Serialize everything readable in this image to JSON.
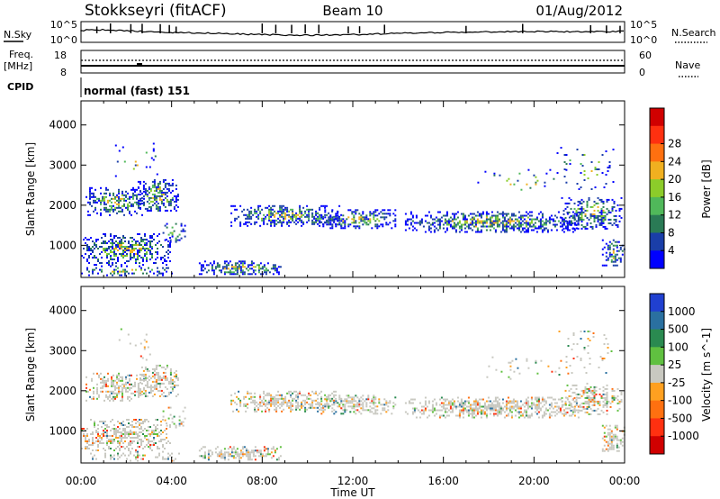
{
  "header": {
    "station": "Stokkseyri (fitACF)",
    "beam": "Beam 10",
    "date": "01/Aug/2012"
  },
  "top_panels": {
    "nsky_label": "N.Sky",
    "nsky_ticks": [
      "10^5",
      "10^0"
    ],
    "nsearch_label": "N.Search",
    "nsearch_ticks": [
      "10^5",
      "10^0"
    ],
    "freq_label_1": "Freq.",
    "freq_label_2": "[MHz]",
    "freq_ticks": [
      "18",
      "8"
    ],
    "nave_label": "Nave",
    "nave_ticks": [
      "60",
      "0"
    ],
    "cpid_label": "CPID",
    "cpid_value": "normal (fast) 151"
  },
  "chart_data": [
    {
      "type": "heatmap",
      "name": "power",
      "ylabel": "Slant Range [km]",
      "xlabel": "Time UT",
      "xlim": [
        "00:00",
        "24:00"
      ],
      "ylim": [
        200,
        4600
      ],
      "yticks": [
        "1000",
        "2000",
        "3000",
        "4000"
      ],
      "xticks": [
        "00:00",
        "04:00",
        "08:00",
        "12:00",
        "16:00",
        "20:00",
        "00:00"
      ],
      "colorbar_label": "Power [dB]",
      "colorbar_ticks": [
        "4",
        "8",
        "12",
        "16",
        "20",
        "24",
        "28"
      ],
      "colors": [
        "#0000ff",
        "#1a3ea8",
        "#2a7a55",
        "#50b85a",
        "#8ccc2a",
        "#f0b020",
        "#ff7010",
        "#ff3010",
        "#d00000"
      ]
    },
    {
      "type": "heatmap",
      "name": "velocity",
      "ylabel": "Slant Range [km]",
      "xlabel": "Time UT",
      "xlim": [
        "00:00",
        "24:00"
      ],
      "ylim": [
        200,
        4600
      ],
      "yticks": [
        "1000",
        "2000",
        "3000",
        "4000"
      ],
      "xticks": [
        "00:00",
        "04:00",
        "08:00",
        "12:00",
        "16:00",
        "20:00",
        "00:00"
      ],
      "colorbar_label": "Velocity [m s^-1]",
      "colorbar_ticks": [
        "1000",
        "500",
        "100",
        "25",
        "-25",
        "-100",
        "-500",
        "-1000"
      ],
      "colors": [
        "#2040d0",
        "#2a70a0",
        "#2a8a50",
        "#60c040",
        "#c8c8c0",
        "#ffa020",
        "#ff7010",
        "#ff3010",
        "#d00000"
      ]
    }
  ]
}
